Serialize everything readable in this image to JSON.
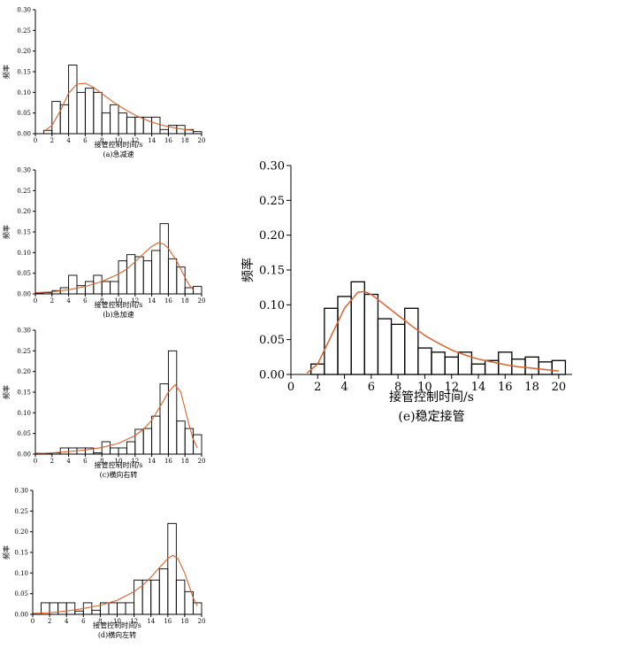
{
  "colors": {
    "bar_stroke": "#000000",
    "curve": "#d9622b",
    "axis": "#000000"
  },
  "charts": [
    {
      "id": "a",
      "type": "bar",
      "caption": "(a)急减速",
      "xlabel": "接管控制时间/s",
      "ylabel": "频率",
      "xlim": [
        0,
        20
      ],
      "ylim": [
        0,
        0.3
      ],
      "xticks": [
        "0",
        "2",
        "4",
        "6",
        "8",
        "10",
        "12",
        "14",
        "16",
        "18",
        "20"
      ],
      "yticks": [
        "0.00",
        "0.05",
        "0.10",
        "0.15",
        "0.20",
        "0.25",
        "0.30"
      ],
      "bin_width": 1,
      "bins": [
        1,
        2,
        3,
        4,
        5,
        6,
        7,
        8,
        9,
        10,
        11,
        12,
        13,
        14,
        15,
        16,
        17,
        18,
        19
      ],
      "values": [
        0.008,
        0.078,
        0.07,
        0.166,
        0.1,
        0.11,
        0.1,
        0.05,
        0.07,
        0.05,
        0.04,
        0.04,
        0.04,
        0.04,
        0.01,
        0.02,
        0.02,
        0.01,
        0.005
      ],
      "curve": [
        [
          1,
          0.005
        ],
        [
          2,
          0.02
        ],
        [
          3,
          0.055
        ],
        [
          4,
          0.098
        ],
        [
          5,
          0.12
        ],
        [
          6,
          0.122
        ],
        [
          7,
          0.112
        ],
        [
          8,
          0.097
        ],
        [
          9,
          0.082
        ],
        [
          10,
          0.068
        ],
        [
          11,
          0.056
        ],
        [
          12,
          0.045
        ],
        [
          13,
          0.036
        ],
        [
          14,
          0.028
        ],
        [
          15,
          0.022
        ],
        [
          16,
          0.017
        ],
        [
          17,
          0.013
        ],
        [
          18,
          0.01
        ],
        [
          19,
          0.008
        ]
      ]
    },
    {
      "id": "b",
      "type": "bar",
      "caption": "(b)急加速",
      "xlabel": "接管控制时间/s",
      "ylabel": "频率",
      "xlim": [
        0,
        20
      ],
      "ylim": [
        0,
        0.3
      ],
      "xticks": [
        "0",
        "2",
        "4",
        "6",
        "8",
        "10",
        "12",
        "14",
        "16",
        "18",
        "20"
      ],
      "yticks": [
        "0.00",
        "0.05",
        "0.10",
        "0.15",
        "0.20",
        "0.25",
        "0.30"
      ],
      "bin_width": 1,
      "bins": [
        0,
        1,
        2,
        3,
        4,
        5,
        6,
        7,
        8,
        9,
        10,
        11,
        12,
        13,
        14,
        15,
        16,
        17,
        18,
        19
      ],
      "values": [
        0.002,
        0.003,
        0.008,
        0.015,
        0.045,
        0.02,
        0.03,
        0.045,
        0.03,
        0.03,
        0.08,
        0.095,
        0.09,
        0.08,
        0.105,
        0.17,
        0.085,
        0.065,
        0.015,
        0.018
      ],
      "curve": [
        [
          0,
          0.003
        ],
        [
          2,
          0.005
        ],
        [
          4,
          0.01
        ],
        [
          6,
          0.018
        ],
        [
          8,
          0.03
        ],
        [
          10,
          0.048
        ],
        [
          11,
          0.06
        ],
        [
          12,
          0.078
        ],
        [
          13,
          0.097
        ],
        [
          14,
          0.115
        ],
        [
          14.8,
          0.124
        ],
        [
          15.5,
          0.12
        ],
        [
          16,
          0.11
        ],
        [
          17,
          0.08
        ],
        [
          18,
          0.04
        ],
        [
          18.5,
          0.022
        ],
        [
          19,
          0.01
        ]
      ]
    },
    {
      "id": "c",
      "type": "bar",
      "caption": "(c)横向右转",
      "xlabel": "接管控制时间/s",
      "ylabel": "频率",
      "xlim": [
        0,
        20
      ],
      "ylim": [
        0,
        0.3
      ],
      "xticks": [
        "0",
        "2",
        "4",
        "6",
        "8",
        "10",
        "12",
        "14",
        "16",
        "18",
        "20"
      ],
      "yticks": [
        "0.00",
        "0.05",
        "0.10",
        "0.15",
        "0.20",
        "0.25",
        "0.30"
      ],
      "bin_width": 1,
      "bins": [
        0,
        1,
        2,
        3,
        4,
        5,
        6,
        7,
        8,
        9,
        10,
        11,
        12,
        13,
        14,
        15,
        16,
        17,
        18,
        19
      ],
      "values": [
        0.002,
        0.002,
        0.003,
        0.015,
        0.015,
        0.015,
        0.015,
        0.003,
        0.03,
        0.015,
        0.015,
        0.03,
        0.06,
        0.062,
        0.092,
        0.17,
        0.25,
        0.08,
        0.062,
        0.047
      ],
      "curve": [
        [
          0,
          0.001
        ],
        [
          2,
          0.003
        ],
        [
          4,
          0.006
        ],
        [
          6,
          0.01
        ],
        [
          8,
          0.016
        ],
        [
          10,
          0.026
        ],
        [
          12,
          0.045
        ],
        [
          13,
          0.06
        ],
        [
          14,
          0.082
        ],
        [
          15,
          0.115
        ],
        [
          16,
          0.15
        ],
        [
          16.8,
          0.168
        ],
        [
          17.5,
          0.15
        ],
        [
          18,
          0.11
        ],
        [
          18.5,
          0.07
        ],
        [
          19,
          0.035
        ],
        [
          19.5,
          0.015
        ]
      ]
    },
    {
      "id": "d",
      "type": "bar",
      "caption": "(d)横向左转",
      "xlabel": "接管控制时间/s",
      "ylabel": "频率",
      "xlim": [
        0,
        20
      ],
      "ylim": [
        0,
        0.3
      ],
      "xticks": [
        "0",
        "2",
        "4",
        "6",
        "8",
        "10",
        "12",
        "14",
        "16",
        "18",
        "20"
      ],
      "yticks": [
        "0.00",
        "0.05",
        "0.10",
        "0.15",
        "0.20",
        "0.25",
        "0.30"
      ],
      "bin_width": 1,
      "bins": [
        1,
        2,
        3,
        4,
        5,
        6,
        7,
        8,
        9,
        10,
        11,
        12,
        13,
        14,
        15,
        16,
        17,
        18,
        19
      ],
      "values": [
        0.028,
        0.028,
        0.028,
        0.028,
        0.008,
        0.028,
        0.01,
        0.028,
        0.028,
        0.028,
        0.028,
        0.083,
        0.083,
        0.083,
        0.11,
        0.22,
        0.083,
        0.055,
        0.028
      ],
      "curve": [
        [
          0,
          0.002
        ],
        [
          2,
          0.004
        ],
        [
          4,
          0.008
        ],
        [
          6,
          0.014
        ],
        [
          8,
          0.022
        ],
        [
          10,
          0.034
        ],
        [
          12,
          0.055
        ],
        [
          13,
          0.07
        ],
        [
          14,
          0.09
        ],
        [
          15,
          0.113
        ],
        [
          16,
          0.135
        ],
        [
          16.6,
          0.143
        ],
        [
          17.2,
          0.135
        ],
        [
          18,
          0.1
        ],
        [
          18.5,
          0.07
        ],
        [
          19,
          0.04
        ],
        [
          19.5,
          0.02
        ]
      ]
    },
    {
      "id": "e",
      "type": "bar",
      "caption": "(e)稳定接管",
      "xlabel": "接管控制时间/s",
      "ylabel": "频率",
      "xlim": [
        0,
        21
      ],
      "ylim": [
        0,
        0.3
      ],
      "xticks": [
        "0",
        "2",
        "4",
        "6",
        "8",
        "10",
        "12",
        "14",
        "16",
        "18",
        "20"
      ],
      "yticks": [
        "0.00",
        "0.05",
        "0.10",
        "0.15",
        "0.20",
        "0.25",
        "0.30"
      ],
      "bin_width": 1,
      "bins": [
        1.5,
        2.5,
        3.5,
        4.5,
        5.5,
        6.5,
        7.5,
        8.5,
        9.5,
        10.5,
        11.5,
        12.5,
        13.5,
        14.5,
        15.5,
        16.5,
        17.5,
        18.5,
        19.5
      ],
      "values": [
        0.015,
        0.095,
        0.112,
        0.133,
        0.115,
        0.08,
        0.072,
        0.095,
        0.038,
        0.032,
        0.025,
        0.032,
        0.015,
        0.02,
        0.032,
        0.022,
        0.025,
        0.018,
        0.02
      ],
      "curve": [
        [
          1.2,
          0.002
        ],
        [
          2,
          0.015
        ],
        [
          3,
          0.055
        ],
        [
          4,
          0.095
        ],
        [
          5,
          0.118
        ],
        [
          5.5,
          0.119
        ],
        [
          6,
          0.115
        ],
        [
          7,
          0.1
        ],
        [
          8,
          0.085
        ],
        [
          9,
          0.07
        ],
        [
          10,
          0.056
        ],
        [
          11,
          0.045
        ],
        [
          12,
          0.035
        ],
        [
          13,
          0.028
        ],
        [
          14,
          0.022
        ],
        [
          15,
          0.018
        ],
        [
          16,
          0.014
        ],
        [
          17,
          0.011
        ],
        [
          18,
          0.009
        ],
        [
          19,
          0.007
        ],
        [
          20,
          0.005
        ]
      ]
    }
  ]
}
